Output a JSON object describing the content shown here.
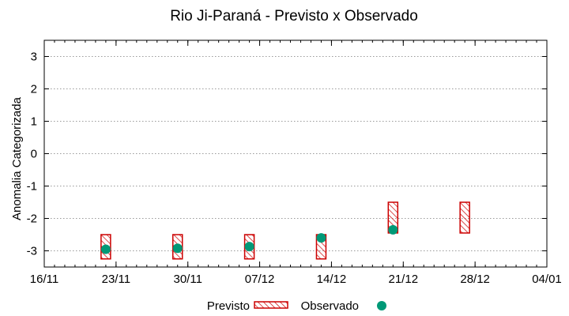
{
  "chart_data": {
    "type": "scatter",
    "title": "Rio Ji-Paraná - Previsto x Observado",
    "xlabel": "",
    "ylabel": "Anomalia Categorizada",
    "ylim": [
      -3.5,
      3.5
    ],
    "yticks": [
      3,
      2,
      1,
      0,
      -1,
      -2,
      -3
    ],
    "ytick_labels": [
      "3",
      "2",
      "1",
      "0",
      "-1",
      "-2",
      "-3"
    ],
    "xlim": [
      "2025-11-16",
      "2026-01-04"
    ],
    "xticks": [
      "2025-11-16",
      "2025-11-23",
      "2025-11-30",
      "2025-12-07",
      "2025-12-14",
      "2025-12-21",
      "2025-12-28",
      "2026-01-04"
    ],
    "xtick_labels": [
      "16/11",
      "23/11",
      "30/11",
      "07/12",
      "14/12",
      "21/12",
      "28/12",
      "04/01"
    ],
    "grid": true,
    "legend_position": "bottom",
    "series": [
      {
        "name": "Previsto",
        "kind": "range-box",
        "color": "#cc0000",
        "points": [
          {
            "x": "2025-11-22",
            "low": -3.25,
            "high": -2.5
          },
          {
            "x": "2025-11-29",
            "low": -3.25,
            "high": -2.5
          },
          {
            "x": "2025-12-06",
            "low": -3.25,
            "high": -2.5
          },
          {
            "x": "2025-12-13",
            "low": -3.25,
            "high": -2.5
          },
          {
            "x": "2025-12-20",
            "low": -2.45,
            "high": -1.5
          },
          {
            "x": "2025-12-27",
            "low": -2.45,
            "high": -1.5
          }
        ]
      },
      {
        "name": "Observado",
        "kind": "point",
        "color": "#009977",
        "points": [
          {
            "x": "2025-11-22",
            "y": -2.95
          },
          {
            "x": "2025-11-29",
            "y": -2.92
          },
          {
            "x": "2025-12-06",
            "y": -2.87
          },
          {
            "x": "2025-12-13",
            "y": -2.6
          },
          {
            "x": "2025-12-20",
            "y": -2.35
          }
        ]
      }
    ]
  }
}
